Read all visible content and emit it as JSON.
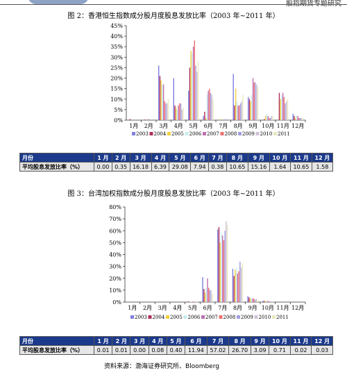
{
  "header": {
    "right_text": "股指期货专题研究"
  },
  "charts": [
    {
      "title": "图 2：香港恒生指数成分股月度股息发放比率（2003 年~2011 年）",
      "table": {
        "label_header": "月份",
        "row_label": "平均股息发放比率（%）",
        "months": [
          "1 月",
          "2 月",
          "3 月",
          "4 月",
          "5 月",
          "6 月",
          "7 月",
          "8 月",
          "9 月",
          "10 月",
          "11 月",
          "12 月"
        ],
        "values": [
          "0.00",
          "0.35",
          "16.18",
          "6.39",
          "29.08",
          "7.94",
          "0.38",
          "10.65",
          "15.16",
          "1.64",
          "10.65",
          "1.58"
        ]
      }
    },
    {
      "title": "图 3：台湾加权指数成分股月度股息发放比率（2003 年~2011 年）",
      "table": {
        "label_header": "月份",
        "row_label": "平均股息发放比率（%）",
        "months": [
          "1 月",
          "2 月",
          "3 月",
          "4 月",
          "5 月",
          "6 月",
          "7 月",
          "8 月",
          "9 月",
          "10 月",
          "11 月",
          "12 月"
        ],
        "values": [
          "0.01",
          "0.01",
          "0.00",
          "0.08",
          "0.40",
          "11.94",
          "57.02",
          "26.70",
          "3.09",
          "0.71",
          "0.02",
          "0.03"
        ]
      }
    }
  ],
  "source": "资料来源：渤海证券研究所、Bloomberg",
  "chart_data": [
    {
      "type": "bar",
      "categories": [
        "1月",
        "2月",
        "3月",
        "4月",
        "5月",
        "6月",
        "7月",
        "8月",
        "9月",
        "10月",
        "11月",
        "12月"
      ],
      "ylim": [
        0,
        45
      ],
      "yticks": [
        "0%",
        "5%",
        "10%",
        "15%",
        "20%",
        "25%",
        "30%",
        "35%",
        "40%",
        "45%"
      ],
      "ytick_values": [
        0,
        5,
        10,
        15,
        20,
        25,
        30,
        35,
        40,
        45
      ],
      "legend_position": "bottom",
      "series": [
        {
          "name": "2003",
          "color": "#8080e0",
          "values": [
            0,
            0,
            26,
            20,
            14,
            2,
            0,
            22,
            11,
            0,
            0,
            3
          ]
        },
        {
          "name": "2004",
          "color": "#b0305a",
          "values": [
            0.5,
            0.3,
            21,
            7,
            25,
            4,
            0,
            7,
            10,
            0.5,
            13,
            2
          ]
        },
        {
          "name": "2005",
          "color": "#f0d040",
          "values": [
            0,
            0,
            19,
            6,
            33,
            1,
            0.5,
            15,
            9,
            2,
            10,
            1
          ]
        },
        {
          "name": "2006",
          "color": "#c8eef0",
          "values": [
            0,
            0,
            17,
            5,
            32,
            12,
            0,
            9,
            12,
            3,
            12,
            2
          ]
        },
        {
          "name": "2007",
          "color": "#c070b0",
          "values": [
            0,
            0.5,
            17,
            7,
            35,
            14,
            0,
            7,
            20,
            2,
            13,
            2
          ]
        },
        {
          "name": "2008",
          "color": "#f07070",
          "values": [
            0,
            0,
            9,
            8,
            38,
            15,
            0,
            7,
            18,
            1,
            11,
            1
          ]
        },
        {
          "name": "2009",
          "color": "#a0a0e0",
          "values": [
            0,
            0,
            8,
            8,
            26,
            13,
            0.5,
            8,
            18,
            1,
            8,
            1
          ]
        },
        {
          "name": "2010",
          "color": "#d0c0d8",
          "values": [
            0,
            0,
            8,
            5,
            23,
            12,
            0.5,
            9,
            17,
            2,
            9,
            1
          ]
        },
        {
          "name": "2011",
          "color": "#e8e8c0",
          "values": [
            0,
            0,
            10,
            6,
            28,
            10,
            0,
            12,
            16,
            2,
            10,
            1
          ]
        }
      ]
    },
    {
      "type": "bar",
      "categories": [
        "1月",
        "2月",
        "3月",
        "4月",
        "5月",
        "6月",
        "7月",
        "8月",
        "9月",
        "10月",
        "11月",
        "12月"
      ],
      "ylim": [
        0,
        80
      ],
      "yticks": [
        "0%",
        "10%",
        "20%",
        "30%",
        "40%",
        "50%",
        "60%",
        "70%",
        "80%"
      ],
      "ytick_values": [
        0,
        10,
        20,
        30,
        40,
        50,
        60,
        70,
        80
      ],
      "legend_position": "bottom",
      "series": [
        {
          "name": "2003",
          "color": "#8080e0",
          "values": [
            0,
            0,
            0,
            0,
            0.5,
            21,
            61,
            28,
            5,
            1,
            0,
            0
          ]
        },
        {
          "name": "2004",
          "color": "#b0305a",
          "values": [
            0,
            0,
            0,
            0,
            0.5,
            11,
            63,
            22,
            4,
            1,
            0,
            0
          ]
        },
        {
          "name": "2005",
          "color": "#f0d040",
          "values": [
            0,
            0,
            0,
            0,
            0.3,
            8,
            50,
            27,
            3,
            1,
            0,
            0
          ]
        },
        {
          "name": "2006",
          "color": "#c8eef0",
          "values": [
            0,
            0,
            0,
            0,
            0.3,
            12,
            58,
            29,
            4,
            1,
            0,
            0
          ]
        },
        {
          "name": "2007",
          "color": "#c070b0",
          "values": [
            0,
            0,
            0,
            0,
            0.3,
            20,
            56,
            24,
            3,
            1,
            0,
            0
          ]
        },
        {
          "name": "2008",
          "color": "#f07070",
          "values": [
            0,
            0,
            0,
            0,
            0.4,
            12,
            52,
            26,
            3,
            0.5,
            0,
            0
          ]
        },
        {
          "name": "2009",
          "color": "#a0a0e0",
          "values": [
            0,
            0,
            0,
            0,
            0.3,
            10,
            60,
            34,
            2,
            0.5,
            0,
            0
          ]
        },
        {
          "name": "2010",
          "color": "#d0c0d8",
          "values": [
            0,
            0,
            0,
            0,
            0.3,
            10,
            68,
            29,
            3,
            0.5,
            0,
            0
          ]
        },
        {
          "name": "2011",
          "color": "#e8e8c0",
          "values": [
            0,
            0,
            0,
            0,
            0.3,
            7,
            65,
            33,
            2,
            0.5,
            0,
            0
          ]
        }
      ]
    }
  ]
}
